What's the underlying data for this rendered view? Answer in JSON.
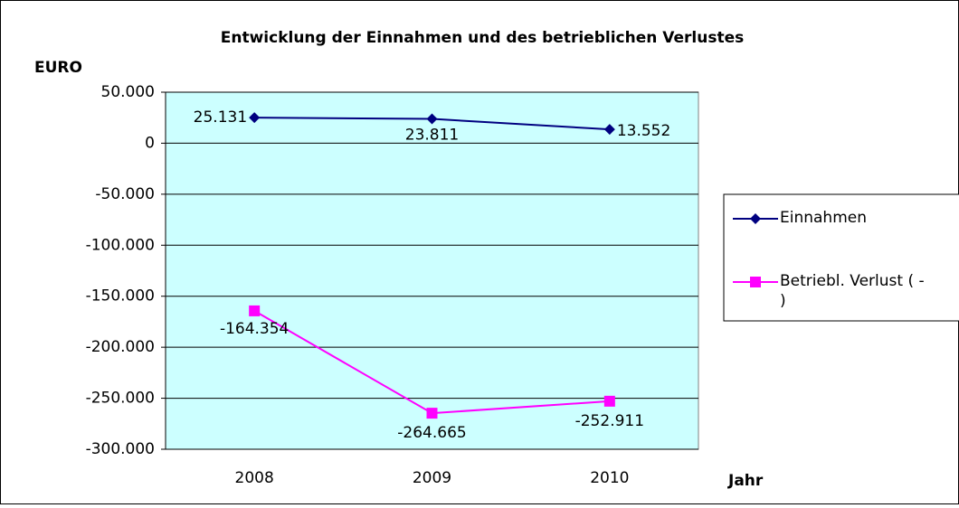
{
  "chart_data": {
    "type": "line",
    "title": "Entwicklung der Einnahmen und des betrieblichen Verlustes",
    "y_label": "EURO",
    "x_label": "Jahr",
    "categories": [
      "2008",
      "2009",
      "2010"
    ],
    "series": [
      {
        "name": "Einnahmen",
        "color": "#000080",
        "marker": "diamond",
        "values": [
          25131,
          23811,
          13552
        ],
        "value_labels": [
          "25.131",
          "23.811",
          "13.552"
        ]
      },
      {
        "name": "Betriebl. Verlust ( - )",
        "color": "#ff00ff",
        "marker": "square",
        "values": [
          -164354,
          -264665,
          -252911
        ],
        "value_labels": [
          "-164.354",
          "-264.665",
          "-252.911"
        ]
      }
    ],
    "ylim": [
      -300000,
      50000
    ],
    "yticks": [
      {
        "value": -300000,
        "label": "-300.000"
      },
      {
        "value": -250000,
        "label": "-250.000"
      },
      {
        "value": -200000,
        "label": "-200.000"
      },
      {
        "value": -150000,
        "label": "-150.000"
      },
      {
        "value": -100000,
        "label": "-100.000"
      },
      {
        "value": -50000,
        "label": "-50.000"
      },
      0,
      {
        "value": 50000,
        "label": "50.000"
      }
    ],
    "grid": true,
    "legend": "right",
    "plot_background": "#ccffff"
  }
}
